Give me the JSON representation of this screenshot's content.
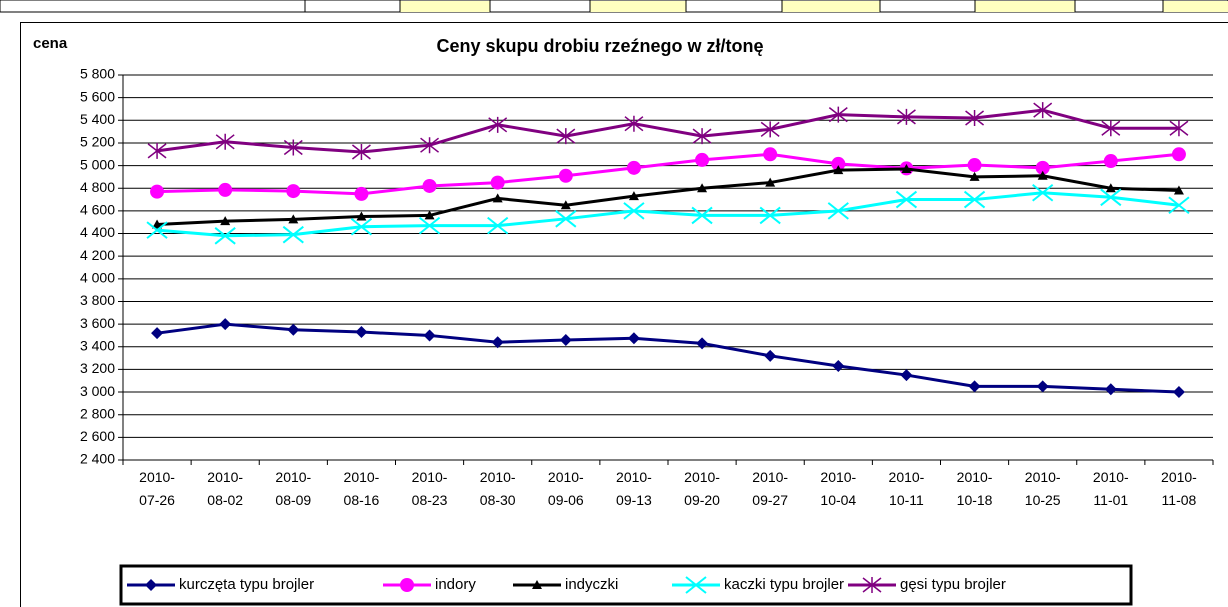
{
  "chart_data": {
    "type": "line",
    "title": "Ceny skupu drobiu rzeźnego w zł/tonę",
    "y_label": "cena",
    "categories": [
      "2010-07-26",
      "2010-08-02",
      "2010-08-09",
      "2010-08-16",
      "2010-08-23",
      "2010-08-30",
      "2010-09-06",
      "2010-09-13",
      "2010-09-20",
      "2010-09-27",
      "2010-10-04",
      "2010-10-11",
      "2010-10-18",
      "2010-10-25",
      "2010-11-01",
      "2010-11-08"
    ],
    "series": [
      {
        "name": "kurczęta typu brojler",
        "color": "#000080",
        "marker": "diamond",
        "values": [
          3520,
          3600,
          3550,
          3530,
          3500,
          3440,
          3460,
          3475,
          3430,
          3320,
          3230,
          3150,
          3050,
          3050,
          3025,
          3000
        ]
      },
      {
        "name": "indory",
        "color": "#ff00ff",
        "marker": "circle",
        "values": [
          4770,
          4785,
          4775,
          4750,
          4820,
          4850,
          4910,
          4980,
          5050,
          5100,
          5015,
          4975,
          5005,
          4980,
          5040,
          5100
        ]
      },
      {
        "name": "indyczki",
        "color": "#000000",
        "marker": "triangle",
        "values": [
          4480,
          4510,
          4525,
          4550,
          4560,
          4710,
          4650,
          4730,
          4800,
          4850,
          4960,
          4970,
          4900,
          4910,
          4800,
          4780
        ]
      },
      {
        "name": "kaczki typu brojler",
        "color": "#00ffff",
        "marker": "x",
        "values": [
          4430,
          4380,
          4390,
          4460,
          4470,
          4470,
          4530,
          4600,
          4560,
          4560,
          4600,
          4700,
          4700,
          4760,
          4720,
          4650
        ]
      },
      {
        "name": "gęsi typu brojler",
        "color": "#800080",
        "marker": "star",
        "values": [
          5130,
          5210,
          5160,
          5120,
          5180,
          5360,
          5260,
          5370,
          5260,
          5320,
          5450,
          5430,
          5420,
          5490,
          5330,
          5330
        ]
      }
    ],
    "ylim": [
      2400,
      5800
    ],
    "yticks": [
      {
        "value": 2400,
        "label": "2 400"
      },
      {
        "value": 2600,
        "label": "2 600"
      },
      {
        "value": 2800,
        "label": "2 800"
      },
      {
        "value": 3000,
        "label": "3 000"
      },
      {
        "value": 3200,
        "label": "3 200"
      },
      {
        "value": 3400,
        "label": "3 400"
      },
      {
        "value": 3600,
        "label": "3 600"
      },
      {
        "value": 3800,
        "label": "3 800"
      },
      {
        "value": 4000,
        "label": "4 000"
      },
      {
        "value": 4200,
        "label": "4 200"
      },
      {
        "value": 4400,
        "label": "4 400"
      },
      {
        "value": 4600,
        "label": "4 600"
      },
      {
        "value": 4800,
        "label": "4 800"
      },
      {
        "value": 5000,
        "label": "5 000"
      },
      {
        "value": 5200,
        "label": "5 200"
      },
      {
        "value": 5400,
        "label": "5 400"
      },
      {
        "value": 5600,
        "label": "5 600"
      },
      {
        "value": 5800,
        "label": "5 800"
      }
    ],
    "grid": true,
    "legend": "bottom"
  }
}
